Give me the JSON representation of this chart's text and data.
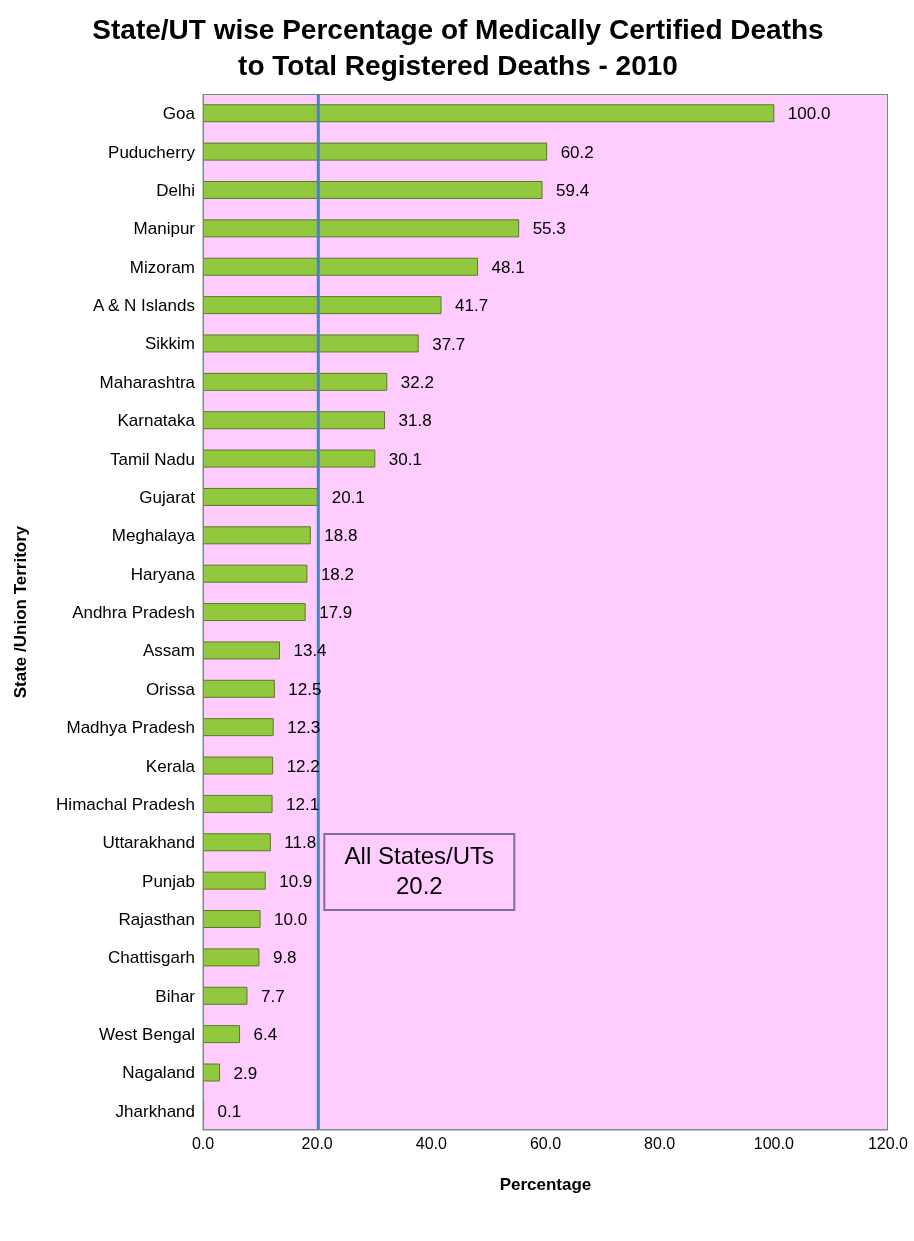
{
  "chart_data": {
    "type": "bar",
    "orientation": "horizontal",
    "title": "State/UT wise Percentage of  Medically Certified Deaths to Total Registered Deaths - 2010",
    "xlabel": "Percentage",
    "ylabel": "State /Union Territory",
    "categories": [
      "Goa",
      "Puducherry",
      "Delhi",
      "Manipur",
      "Mizoram",
      "A & N Islands",
      "Sikkim",
      "Maharashtra",
      "Karnataka",
      "Tamil Nadu",
      "Gujarat",
      "Meghalaya",
      "Haryana",
      "Andhra Pradesh",
      "Assam",
      "Orissa",
      "Madhya Pradesh",
      "Kerala",
      "Himachal Pradesh",
      "Uttarakhand",
      "Punjab",
      "Rajasthan",
      "Chattisgarh",
      "Bihar",
      "West Bengal",
      "Nagaland",
      "Jharkhand"
    ],
    "values": [
      100.0,
      60.2,
      59.4,
      55.3,
      48.1,
      41.7,
      37.7,
      32.2,
      31.8,
      30.1,
      20.1,
      18.8,
      18.2,
      17.9,
      13.4,
      12.5,
      12.3,
      12.2,
      12.1,
      11.8,
      10.9,
      10.0,
      9.8,
      7.7,
      6.4,
      2.9,
      0.1
    ],
    "value_labels": [
      "100.0",
      "60.2",
      "59.4",
      "55.3",
      "48.1",
      "41.7",
      "37.7",
      "32.2",
      "31.8",
      "30.1",
      "20.1",
      "18.8",
      "18.2",
      "17.9",
      "13.4",
      "12.5",
      "12.3",
      "12.2",
      "12.1",
      "11.8",
      "10.9",
      "10.0",
      "9.8",
      "7.7",
      "6.4",
      "2.9",
      "0.1"
    ],
    "color": "#92c83e",
    "xlim": [
      0,
      120
    ],
    "xticks": [
      {
        "value": 0,
        "label": "0.0"
      },
      {
        "value": 20,
        "label": "20.0"
      },
      {
        "value": 40,
        "label": "40.0"
      },
      {
        "value": 60,
        "label": "60.0"
      },
      {
        "value": 80,
        "label": "80.0"
      },
      {
        "value": 100,
        "label": "100.0"
      },
      {
        "value": 120,
        "label": "120.0"
      }
    ],
    "ref_lines": [
      {
        "axis": "x",
        "value": 20.2,
        "label": "All States/UTs\n20.2",
        "color": "#4f81bd"
      }
    ],
    "grid": false,
    "legend": false
  }
}
